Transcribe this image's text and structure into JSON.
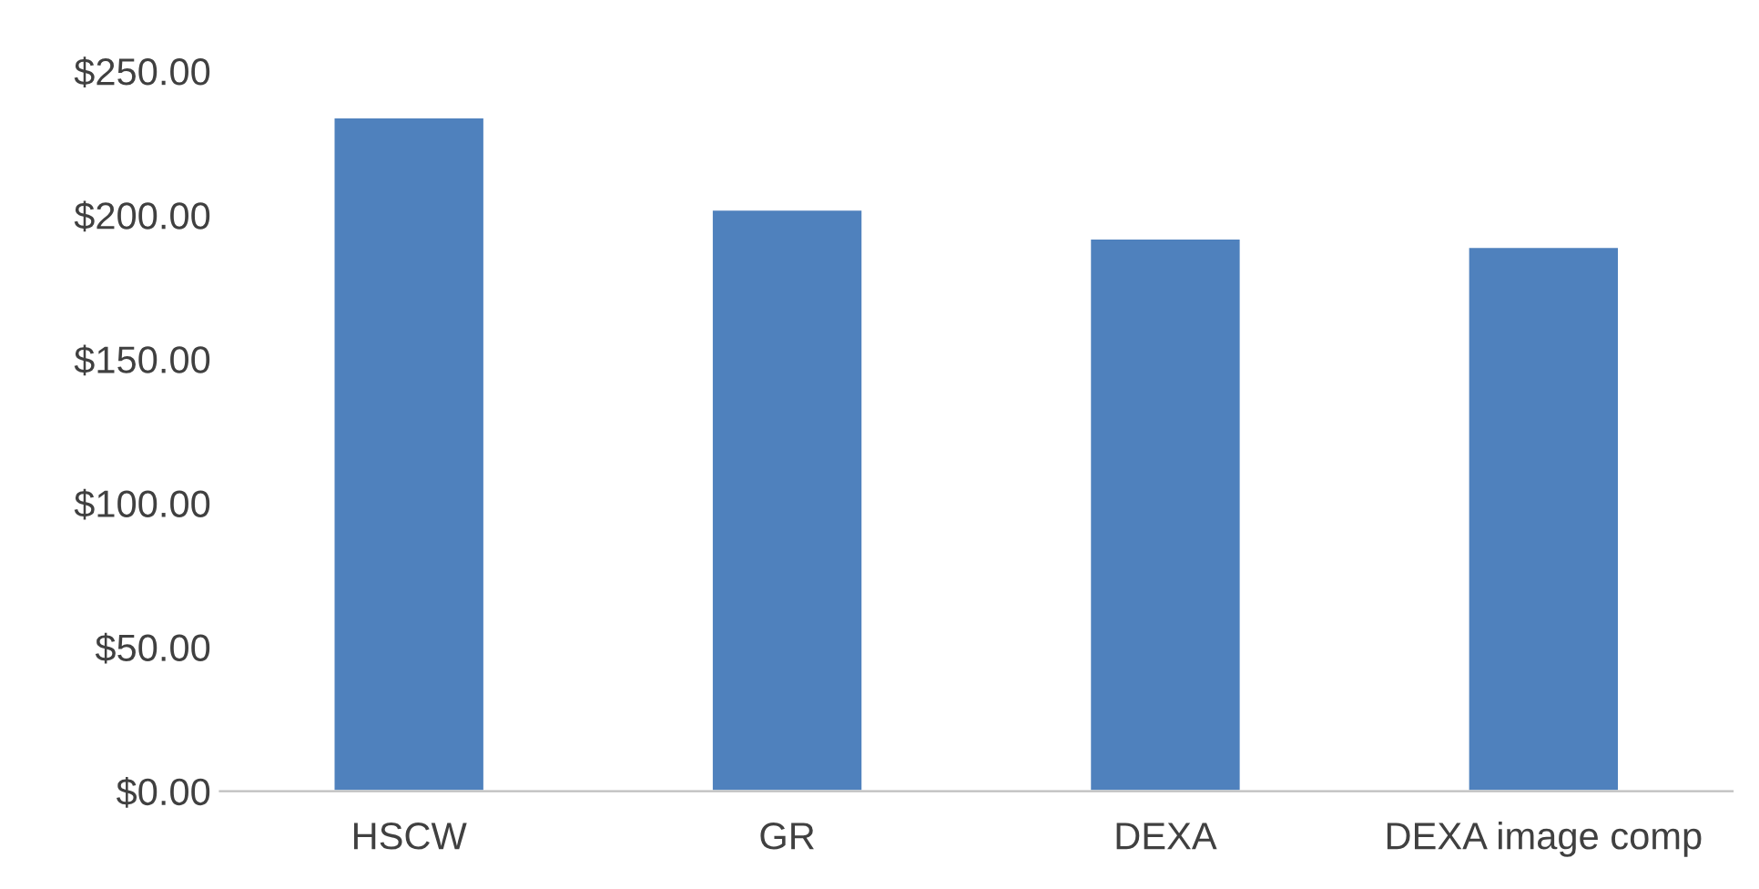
{
  "chart_data": {
    "type": "bar",
    "categories": [
      "HSCW",
      "GR",
      "DEXA",
      "DEXA image comp"
    ],
    "series": [
      {
        "color": "#4f81bd",
        "values": [
          234,
          202,
          192,
          189
        ]
      }
    ],
    "ylim": [
      0,
      250
    ],
    "yticks": [
      {
        "value": 0,
        "label": "$0.00"
      },
      {
        "value": 50,
        "label": "$50.00"
      },
      {
        "value": 100,
        "label": "$100.00"
      },
      {
        "value": 150,
        "label": "$150.00"
      },
      {
        "value": 200,
        "label": "$200.00"
      },
      {
        "value": 250,
        "label": "$250.00"
      }
    ],
    "grid": false,
    "legend": false
  }
}
